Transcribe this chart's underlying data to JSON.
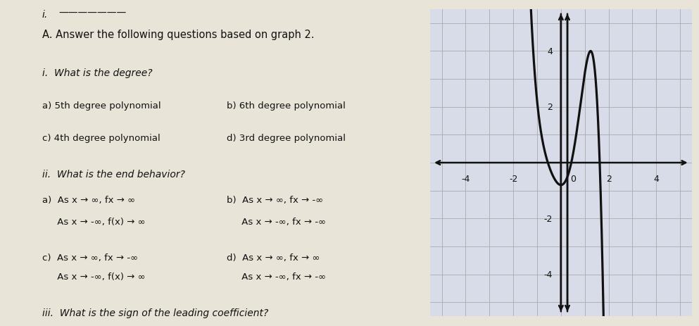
{
  "graph_xlim": [
    -5.5,
    5.5
  ],
  "graph_ylim": [
    -5.5,
    5.5
  ],
  "grid_color": "#aaaaaa",
  "axis_color": "#111111",
  "curve_color": "#111111",
  "bg_color": "#d8dce8",
  "paper_color": "#e8e4d8",
  "title_line1": "A. Answer the following questions based on graph 2.",
  "question_i": "i.  What is the degree?",
  "ans_a_left": "a) 5th degree polynomial",
  "ans_b_right": "b) 6th degree polynomial",
  "ans_c_left": "c) 4th degree polynomial",
  "ans_d_right": "d) 3rd degree polynomial",
  "question_ii": "ii.  What is the end behavior?",
  "eb_a1": "a)  As x → ∞, fx → ∞",
  "eb_a2": "     As x → -∞, f(x) → ∞",
  "eb_b1": "b)  As x → ∞, fx → -∞",
  "eb_b2": "     As x → -∞, fx → -∞",
  "eb_c1": "c)  As x → ∞, fx → -∞",
  "eb_c2": "     As x → -∞, f(x) → ∞",
  "eb_d1": "d)  As x → ∞, fx → ∞",
  "eb_d2": "     As x → -∞, fx → -∞",
  "question_iii": "iii.  What is the sign of the leading coefficient?"
}
